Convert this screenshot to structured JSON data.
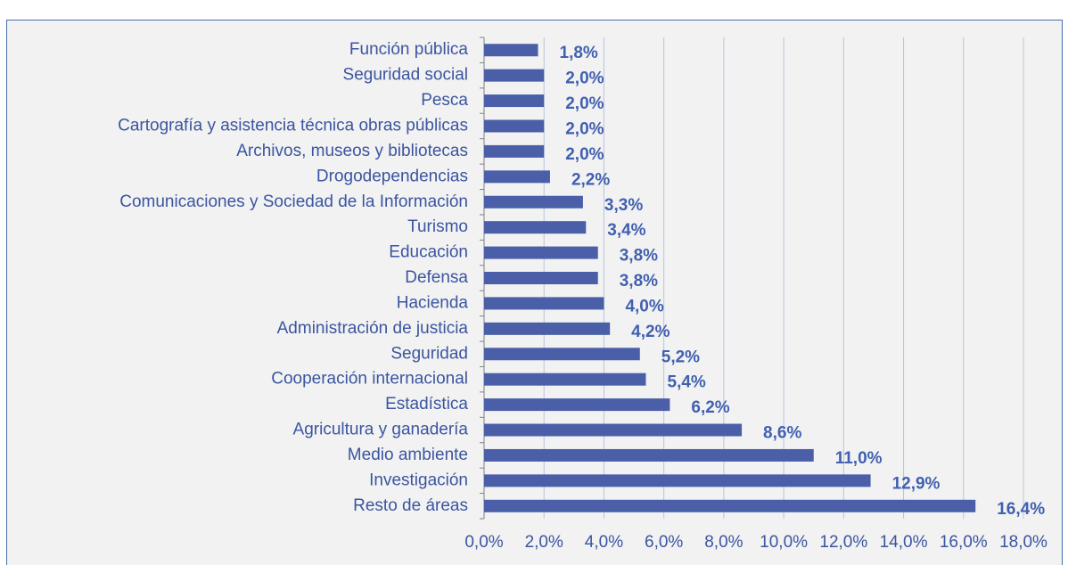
{
  "chart_data": {
    "type": "bar",
    "orientation": "horizontal",
    "categories": [
      "Función pública",
      "Seguridad social",
      "Pesca",
      "Cartografía y asistencia técnica obras públicas",
      "Archivos, museos y bibliotecas",
      "Drogodependencias",
      "Comunicaciones y Sociedad de la Información",
      "Turismo",
      "Educación",
      "Defensa",
      "Hacienda",
      "Administración de justicia",
      "Seguridad",
      "Cooperación internacional",
      "Estadística",
      "Agricultura y ganadería",
      "Medio ambiente",
      "Investigación",
      "Resto de áreas"
    ],
    "values": [
      1.8,
      2.0,
      2.0,
      2.0,
      2.0,
      2.2,
      3.3,
      3.4,
      3.8,
      3.8,
      4.0,
      4.2,
      5.2,
      5.4,
      6.2,
      8.6,
      11.0,
      12.9,
      16.4
    ],
    "value_labels": [
      "1,8%",
      "2,0%",
      "2,0%",
      "2,0%",
      "2,0%",
      "2,2%",
      "3,3%",
      "3,4%",
      "3,8%",
      "3,8%",
      "4,0%",
      "4,2%",
      "5,2%",
      "5,4%",
      "6,2%",
      "8,6%",
      "11,0%",
      "12,9%",
      "16,4%"
    ],
    "color": "#4a5fa8",
    "xlim": [
      0,
      18
    ],
    "xticks": [
      {
        "value": 0,
        "label": "0,0%"
      },
      {
        "value": 2,
        "label": "2,0%"
      },
      {
        "value": 4,
        "label": "4,0%"
      },
      {
        "value": 6,
        "label": "6,0%"
      },
      {
        "value": 8,
        "label": "8,0%"
      },
      {
        "value": 10,
        "label": "10,0%"
      },
      {
        "value": 12,
        "label": "12,0%"
      },
      {
        "value": 14,
        "label": "14,0%"
      },
      {
        "value": 16,
        "label": "16,0%"
      },
      {
        "value": 18,
        "label": "18,0%"
      }
    ],
    "grid": true
  }
}
